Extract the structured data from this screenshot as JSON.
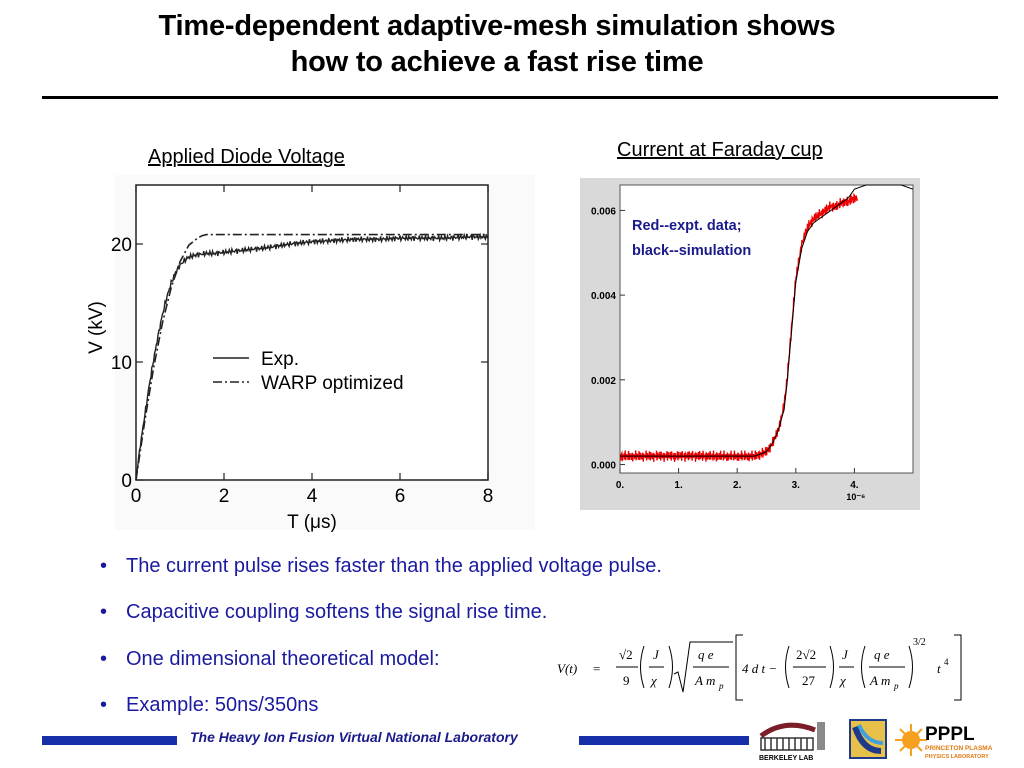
{
  "title_line1": "Time-dependent adaptive-mesh simulation shows",
  "title_line2": "how to achieve a fast rise time",
  "chart_data": [
    {
      "type": "line",
      "title": "Applied Diode Voltage",
      "xlabel": "T (μs)",
      "ylabel": "V (kV)",
      "xlim": [
        0,
        8
      ],
      "ylim": [
        0,
        25
      ],
      "xticks": [
        0,
        2,
        4,
        6,
        8
      ],
      "yticks": [
        0,
        10,
        20
      ],
      "legend_position": "center-right",
      "series": [
        {
          "name": "Exp.",
          "style": "solid",
          "x": [
            0,
            0.1,
            0.2,
            0.3,
            0.4,
            0.5,
            0.6,
            0.7,
            0.8,
            0.9,
            1.0,
            1.1,
            1.2,
            1.4,
            1.6,
            1.8,
            2.0,
            2.5,
            3.0,
            3.5,
            4.0,
            4.5,
            5.0,
            5.5,
            6.0,
            6.5,
            7.0,
            7.5,
            8.0
          ],
          "y": [
            0,
            3.0,
            5.5,
            8.0,
            10.2,
            12.2,
            14.0,
            15.5,
            16.7,
            17.6,
            18.2,
            18.6,
            18.9,
            19.1,
            19.2,
            19.2,
            19.3,
            19.5,
            19.7,
            20.0,
            20.2,
            20.3,
            20.4,
            20.4,
            20.5,
            20.5,
            20.5,
            20.6,
            20.6
          ]
        },
        {
          "name": "WARP optimized",
          "style": "dashdot",
          "x": [
            0,
            0.2,
            0.4,
            0.6,
            0.8,
            1.0,
            1.2,
            1.4,
            1.5,
            1.6,
            2.0,
            4.0,
            6.0,
            8.0
          ],
          "y": [
            0,
            5.0,
            9.5,
            13.3,
            16.3,
            18.5,
            19.9,
            20.5,
            20.7,
            20.8,
            20.8,
            20.8,
            20.8,
            20.8
          ]
        }
      ]
    },
    {
      "type": "line",
      "title": "Current at Faraday cup",
      "xlabel": "",
      "x_multiplier": "10⁻⁶",
      "xlim": [
        0,
        5
      ],
      "ylim": [
        -0.0002,
        0.0066
      ],
      "xticks": [
        0,
        1,
        2,
        3,
        4
      ],
      "xticklabels": [
        "0.",
        "1.",
        "2.",
        "3.",
        "4."
      ],
      "yticks": [
        0,
        0.002,
        0.004,
        0.006
      ],
      "yticklabels": [
        "0.000",
        "0.002",
        "0.004",
        "0.006"
      ],
      "annotation": [
        "Red--expt. data;",
        "black--simulation"
      ],
      "series": [
        {
          "name": "expt. data",
          "color": "#ee0000",
          "x": [
            0,
            0.5,
            1.0,
            1.5,
            2.0,
            2.3,
            2.5,
            2.6,
            2.7,
            2.8,
            2.85,
            2.9,
            2.95,
            3.0,
            3.1,
            3.2,
            3.3,
            3.4,
            3.5,
            3.6,
            3.7,
            3.8,
            3.9,
            4.0,
            4.05
          ],
          "y": [
            0.0002,
            0.0002,
            0.0002,
            0.0002,
            0.0002,
            0.0002,
            0.0003,
            0.0005,
            0.0008,
            0.0014,
            0.002,
            0.0028,
            0.0036,
            0.0044,
            0.0052,
            0.0056,
            0.0058,
            0.0059,
            0.006,
            0.0061,
            0.0061,
            0.0062,
            0.0062,
            0.0063,
            0.0063
          ]
        },
        {
          "name": "simulation",
          "color": "#000000",
          "x": [
            0,
            0.5,
            1.0,
            1.5,
            2.0,
            2.3,
            2.5,
            2.6,
            2.7,
            2.8,
            2.85,
            2.9,
            2.95,
            3.0,
            3.1,
            3.2,
            3.3,
            3.4,
            3.5,
            3.6,
            3.7,
            3.8,
            3.9,
            4.0,
            4.2,
            4.5,
            4.8,
            5.0
          ],
          "y": [
            0.0002,
            0.0002,
            0.0002,
            0.0002,
            0.0002,
            0.0002,
            0.0003,
            0.0005,
            0.0008,
            0.0013,
            0.0019,
            0.0027,
            0.0035,
            0.0043,
            0.0051,
            0.0055,
            0.0057,
            0.0058,
            0.0059,
            0.006,
            0.0061,
            0.0062,
            0.0063,
            0.0065,
            0.0066,
            0.0066,
            0.0066,
            0.0065
          ]
        }
      ]
    }
  ],
  "bullets": [
    "The current pulse rises faster than the applied voltage pulse.",
    "Capacitive coupling softens the signal rise time.",
    "One dimensional theoretical model:",
    "Example: 50ns/350ns"
  ],
  "bullet_symbol": "•",
  "equation": {
    "lhs": "V(t)",
    "eq": "=",
    "f1_num": "√2",
    "f1_den": "9",
    "f2_num": "J",
    "f2_den": "χ",
    "f3_num": "q e",
    "f3_den": "A m",
    "f3_sub": "p",
    "b_term": "4 d t −",
    "f4_num": "2√2",
    "f4_den": "27",
    "f5_num": "J",
    "f5_den": "χ",
    "f6_num": "q e",
    "f6_den": "A m",
    "f6_sub": "p",
    "t_term": "t",
    "t_exp": "4",
    "outer_exp": "3/2"
  },
  "footer": {
    "text": "The Heavy Ion Fusion Virtual National Laboratory"
  },
  "logos": {
    "berkeley": "BERKELEY LAB",
    "pppl": "PPPL",
    "pppl_sub1": "PRINCETON PLASMA",
    "pppl_sub2": "PHYSICS LABORATORY"
  },
  "colors": {
    "accent_blue": "#1730a8",
    "bullet_text": "#1a1aa0",
    "expt_red": "#ee0000",
    "annotation_navy": "#1a1a8a"
  }
}
